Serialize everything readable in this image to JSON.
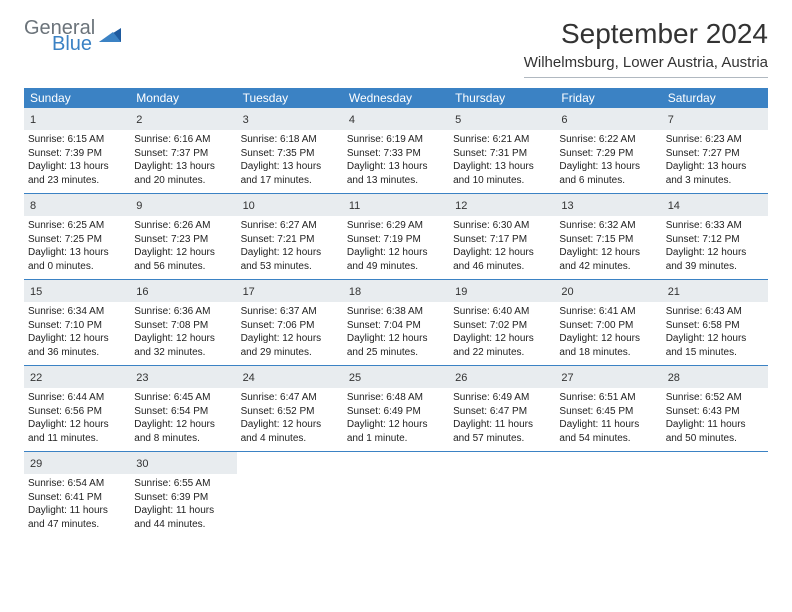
{
  "logo": {
    "general": "General",
    "blue": "Blue"
  },
  "title": "September 2024",
  "location": "Wilhelmsburg, Lower Austria, Austria",
  "colors": {
    "header_bg": "#3b82c4",
    "daynum_bg": "#e8ecef",
    "border": "#3b82c4",
    "logo_gray": "#6b737a",
    "logo_blue": "#3b82c4"
  },
  "day_names": [
    "Sunday",
    "Monday",
    "Tuesday",
    "Wednesday",
    "Thursday",
    "Friday",
    "Saturday"
  ],
  "weeks": [
    [
      {
        "n": "1",
        "sr": "Sunrise: 6:15 AM",
        "ss": "Sunset: 7:39 PM",
        "dl": "Daylight: 13 hours and 23 minutes."
      },
      {
        "n": "2",
        "sr": "Sunrise: 6:16 AM",
        "ss": "Sunset: 7:37 PM",
        "dl": "Daylight: 13 hours and 20 minutes."
      },
      {
        "n": "3",
        "sr": "Sunrise: 6:18 AM",
        "ss": "Sunset: 7:35 PM",
        "dl": "Daylight: 13 hours and 17 minutes."
      },
      {
        "n": "4",
        "sr": "Sunrise: 6:19 AM",
        "ss": "Sunset: 7:33 PM",
        "dl": "Daylight: 13 hours and 13 minutes."
      },
      {
        "n": "5",
        "sr": "Sunrise: 6:21 AM",
        "ss": "Sunset: 7:31 PM",
        "dl": "Daylight: 13 hours and 10 minutes."
      },
      {
        "n": "6",
        "sr": "Sunrise: 6:22 AM",
        "ss": "Sunset: 7:29 PM",
        "dl": "Daylight: 13 hours and 6 minutes."
      },
      {
        "n": "7",
        "sr": "Sunrise: 6:23 AM",
        "ss": "Sunset: 7:27 PM",
        "dl": "Daylight: 13 hours and 3 minutes."
      }
    ],
    [
      {
        "n": "8",
        "sr": "Sunrise: 6:25 AM",
        "ss": "Sunset: 7:25 PM",
        "dl": "Daylight: 13 hours and 0 minutes."
      },
      {
        "n": "9",
        "sr": "Sunrise: 6:26 AM",
        "ss": "Sunset: 7:23 PM",
        "dl": "Daylight: 12 hours and 56 minutes."
      },
      {
        "n": "10",
        "sr": "Sunrise: 6:27 AM",
        "ss": "Sunset: 7:21 PM",
        "dl": "Daylight: 12 hours and 53 minutes."
      },
      {
        "n": "11",
        "sr": "Sunrise: 6:29 AM",
        "ss": "Sunset: 7:19 PM",
        "dl": "Daylight: 12 hours and 49 minutes."
      },
      {
        "n": "12",
        "sr": "Sunrise: 6:30 AM",
        "ss": "Sunset: 7:17 PM",
        "dl": "Daylight: 12 hours and 46 minutes."
      },
      {
        "n": "13",
        "sr": "Sunrise: 6:32 AM",
        "ss": "Sunset: 7:15 PM",
        "dl": "Daylight: 12 hours and 42 minutes."
      },
      {
        "n": "14",
        "sr": "Sunrise: 6:33 AM",
        "ss": "Sunset: 7:12 PM",
        "dl": "Daylight: 12 hours and 39 minutes."
      }
    ],
    [
      {
        "n": "15",
        "sr": "Sunrise: 6:34 AM",
        "ss": "Sunset: 7:10 PM",
        "dl": "Daylight: 12 hours and 36 minutes."
      },
      {
        "n": "16",
        "sr": "Sunrise: 6:36 AM",
        "ss": "Sunset: 7:08 PM",
        "dl": "Daylight: 12 hours and 32 minutes."
      },
      {
        "n": "17",
        "sr": "Sunrise: 6:37 AM",
        "ss": "Sunset: 7:06 PM",
        "dl": "Daylight: 12 hours and 29 minutes."
      },
      {
        "n": "18",
        "sr": "Sunrise: 6:38 AM",
        "ss": "Sunset: 7:04 PM",
        "dl": "Daylight: 12 hours and 25 minutes."
      },
      {
        "n": "19",
        "sr": "Sunrise: 6:40 AM",
        "ss": "Sunset: 7:02 PM",
        "dl": "Daylight: 12 hours and 22 minutes."
      },
      {
        "n": "20",
        "sr": "Sunrise: 6:41 AM",
        "ss": "Sunset: 7:00 PM",
        "dl": "Daylight: 12 hours and 18 minutes."
      },
      {
        "n": "21",
        "sr": "Sunrise: 6:43 AM",
        "ss": "Sunset: 6:58 PM",
        "dl": "Daylight: 12 hours and 15 minutes."
      }
    ],
    [
      {
        "n": "22",
        "sr": "Sunrise: 6:44 AM",
        "ss": "Sunset: 6:56 PM",
        "dl": "Daylight: 12 hours and 11 minutes."
      },
      {
        "n": "23",
        "sr": "Sunrise: 6:45 AM",
        "ss": "Sunset: 6:54 PM",
        "dl": "Daylight: 12 hours and 8 minutes."
      },
      {
        "n": "24",
        "sr": "Sunrise: 6:47 AM",
        "ss": "Sunset: 6:52 PM",
        "dl": "Daylight: 12 hours and 4 minutes."
      },
      {
        "n": "25",
        "sr": "Sunrise: 6:48 AM",
        "ss": "Sunset: 6:49 PM",
        "dl": "Daylight: 12 hours and 1 minute."
      },
      {
        "n": "26",
        "sr": "Sunrise: 6:49 AM",
        "ss": "Sunset: 6:47 PM",
        "dl": "Daylight: 11 hours and 57 minutes."
      },
      {
        "n": "27",
        "sr": "Sunrise: 6:51 AM",
        "ss": "Sunset: 6:45 PM",
        "dl": "Daylight: 11 hours and 54 minutes."
      },
      {
        "n": "28",
        "sr": "Sunrise: 6:52 AM",
        "ss": "Sunset: 6:43 PM",
        "dl": "Daylight: 11 hours and 50 minutes."
      }
    ],
    [
      {
        "n": "29",
        "sr": "Sunrise: 6:54 AM",
        "ss": "Sunset: 6:41 PM",
        "dl": "Daylight: 11 hours and 47 minutes."
      },
      {
        "n": "30",
        "sr": "Sunrise: 6:55 AM",
        "ss": "Sunset: 6:39 PM",
        "dl": "Daylight: 11 hours and 44 minutes."
      },
      null,
      null,
      null,
      null,
      null
    ]
  ]
}
